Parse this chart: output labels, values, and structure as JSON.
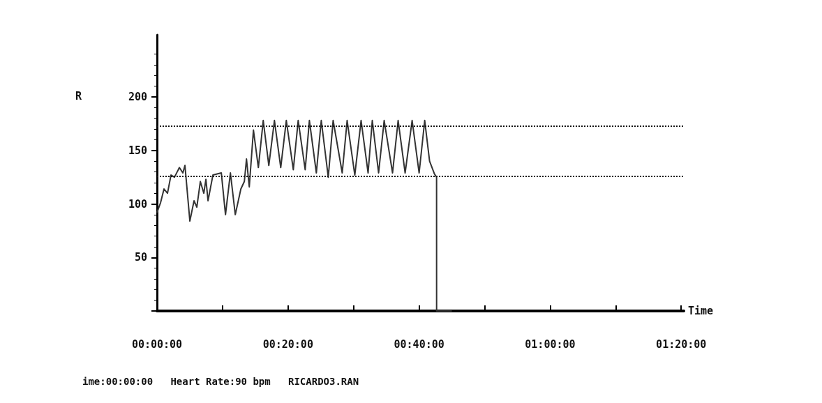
{
  "chart_data": {
    "type": "line",
    "ylabel": "R",
    "xlabel": "Time",
    "annotations": [
      "ime:00:00:00   Heart Rate:90 bpm   RICARDO3.RAN"
    ],
    "xlim": [
      0,
      1.34
    ],
    "xticks": [
      {
        "value": 0,
        "label": "00:00:00"
      },
      {
        "value": 0.1667,
        "label": null
      },
      {
        "value": 0.3333,
        "label": "00:20:00"
      },
      {
        "value": 0.5,
        "label": null
      },
      {
        "value": 0.6667,
        "label": "00:40:00"
      },
      {
        "value": 0.8333,
        "label": null
      },
      {
        "value": 1,
        "label": "01:00:00"
      },
      {
        "value": 1.1667,
        "label": null
      },
      {
        "value": 1.3333,
        "label": "01:20:00"
      }
    ],
    "ylim": [
      0,
      258
    ],
    "yticks": [
      {
        "value": 0,
        "label": null
      },
      50,
      100,
      150,
      200
    ],
    "grid": false,
    "marker": "none",
    "line_style": "solid",
    "ref_lines": [
      {
        "axis": "y",
        "value": 173,
        "color": "#111111",
        "line_style": "dotted"
      },
      {
        "axis": "y",
        "value": 126,
        "color": "#111111",
        "line_style": "dotted"
      }
    ],
    "series": [
      {
        "color": "#333333",
        "x": [
          0,
          0.0089,
          0.0178,
          0.0267,
          0.0356,
          0.0444,
          0.0569,
          0.0658,
          0.0711,
          0.0836,
          0.0942,
          0.1013,
          0.1102,
          0.1191,
          0.1244,
          0.1298,
          0.1422,
          0.1636,
          0.1742,
          0.1867,
          0.1991,
          0.2133,
          0.2222,
          0.2276,
          0.2347,
          0.2453,
          0.2578,
          0.2702,
          0.2844,
          0.2987,
          0.3147,
          0.3289,
          0.3467,
          0.3591,
          0.3769,
          0.3876,
          0.4053,
          0.4178,
          0.4356,
          0.448,
          0.4711,
          0.4836,
          0.5031,
          0.5191,
          0.5369,
          0.5476,
          0.5636,
          0.5778,
          0.5991,
          0.6133,
          0.6311,
          0.6489,
          0.6667,
          0.6809,
          0.6933,
          0.7058,
          0.7111,
          0.7112,
          0.75
        ],
        "values": [
          92,
          101,
          114,
          110,
          127,
          125,
          134,
          129,
          136,
          84,
          103,
          97,
          121,
          110,
          123,
          103,
          127,
          129,
          90,
          129,
          90,
          114,
          121,
          142,
          116,
          169,
          134,
          178,
          136,
          178,
          134,
          178,
          132,
          178,
          132,
          178,
          129,
          178,
          125,
          178,
          129,
          178,
          127,
          178,
          129,
          178,
          129,
          178,
          129,
          178,
          129,
          178,
          129,
          178,
          140,
          128,
          125,
          0,
          0
        ]
      }
    ]
  }
}
